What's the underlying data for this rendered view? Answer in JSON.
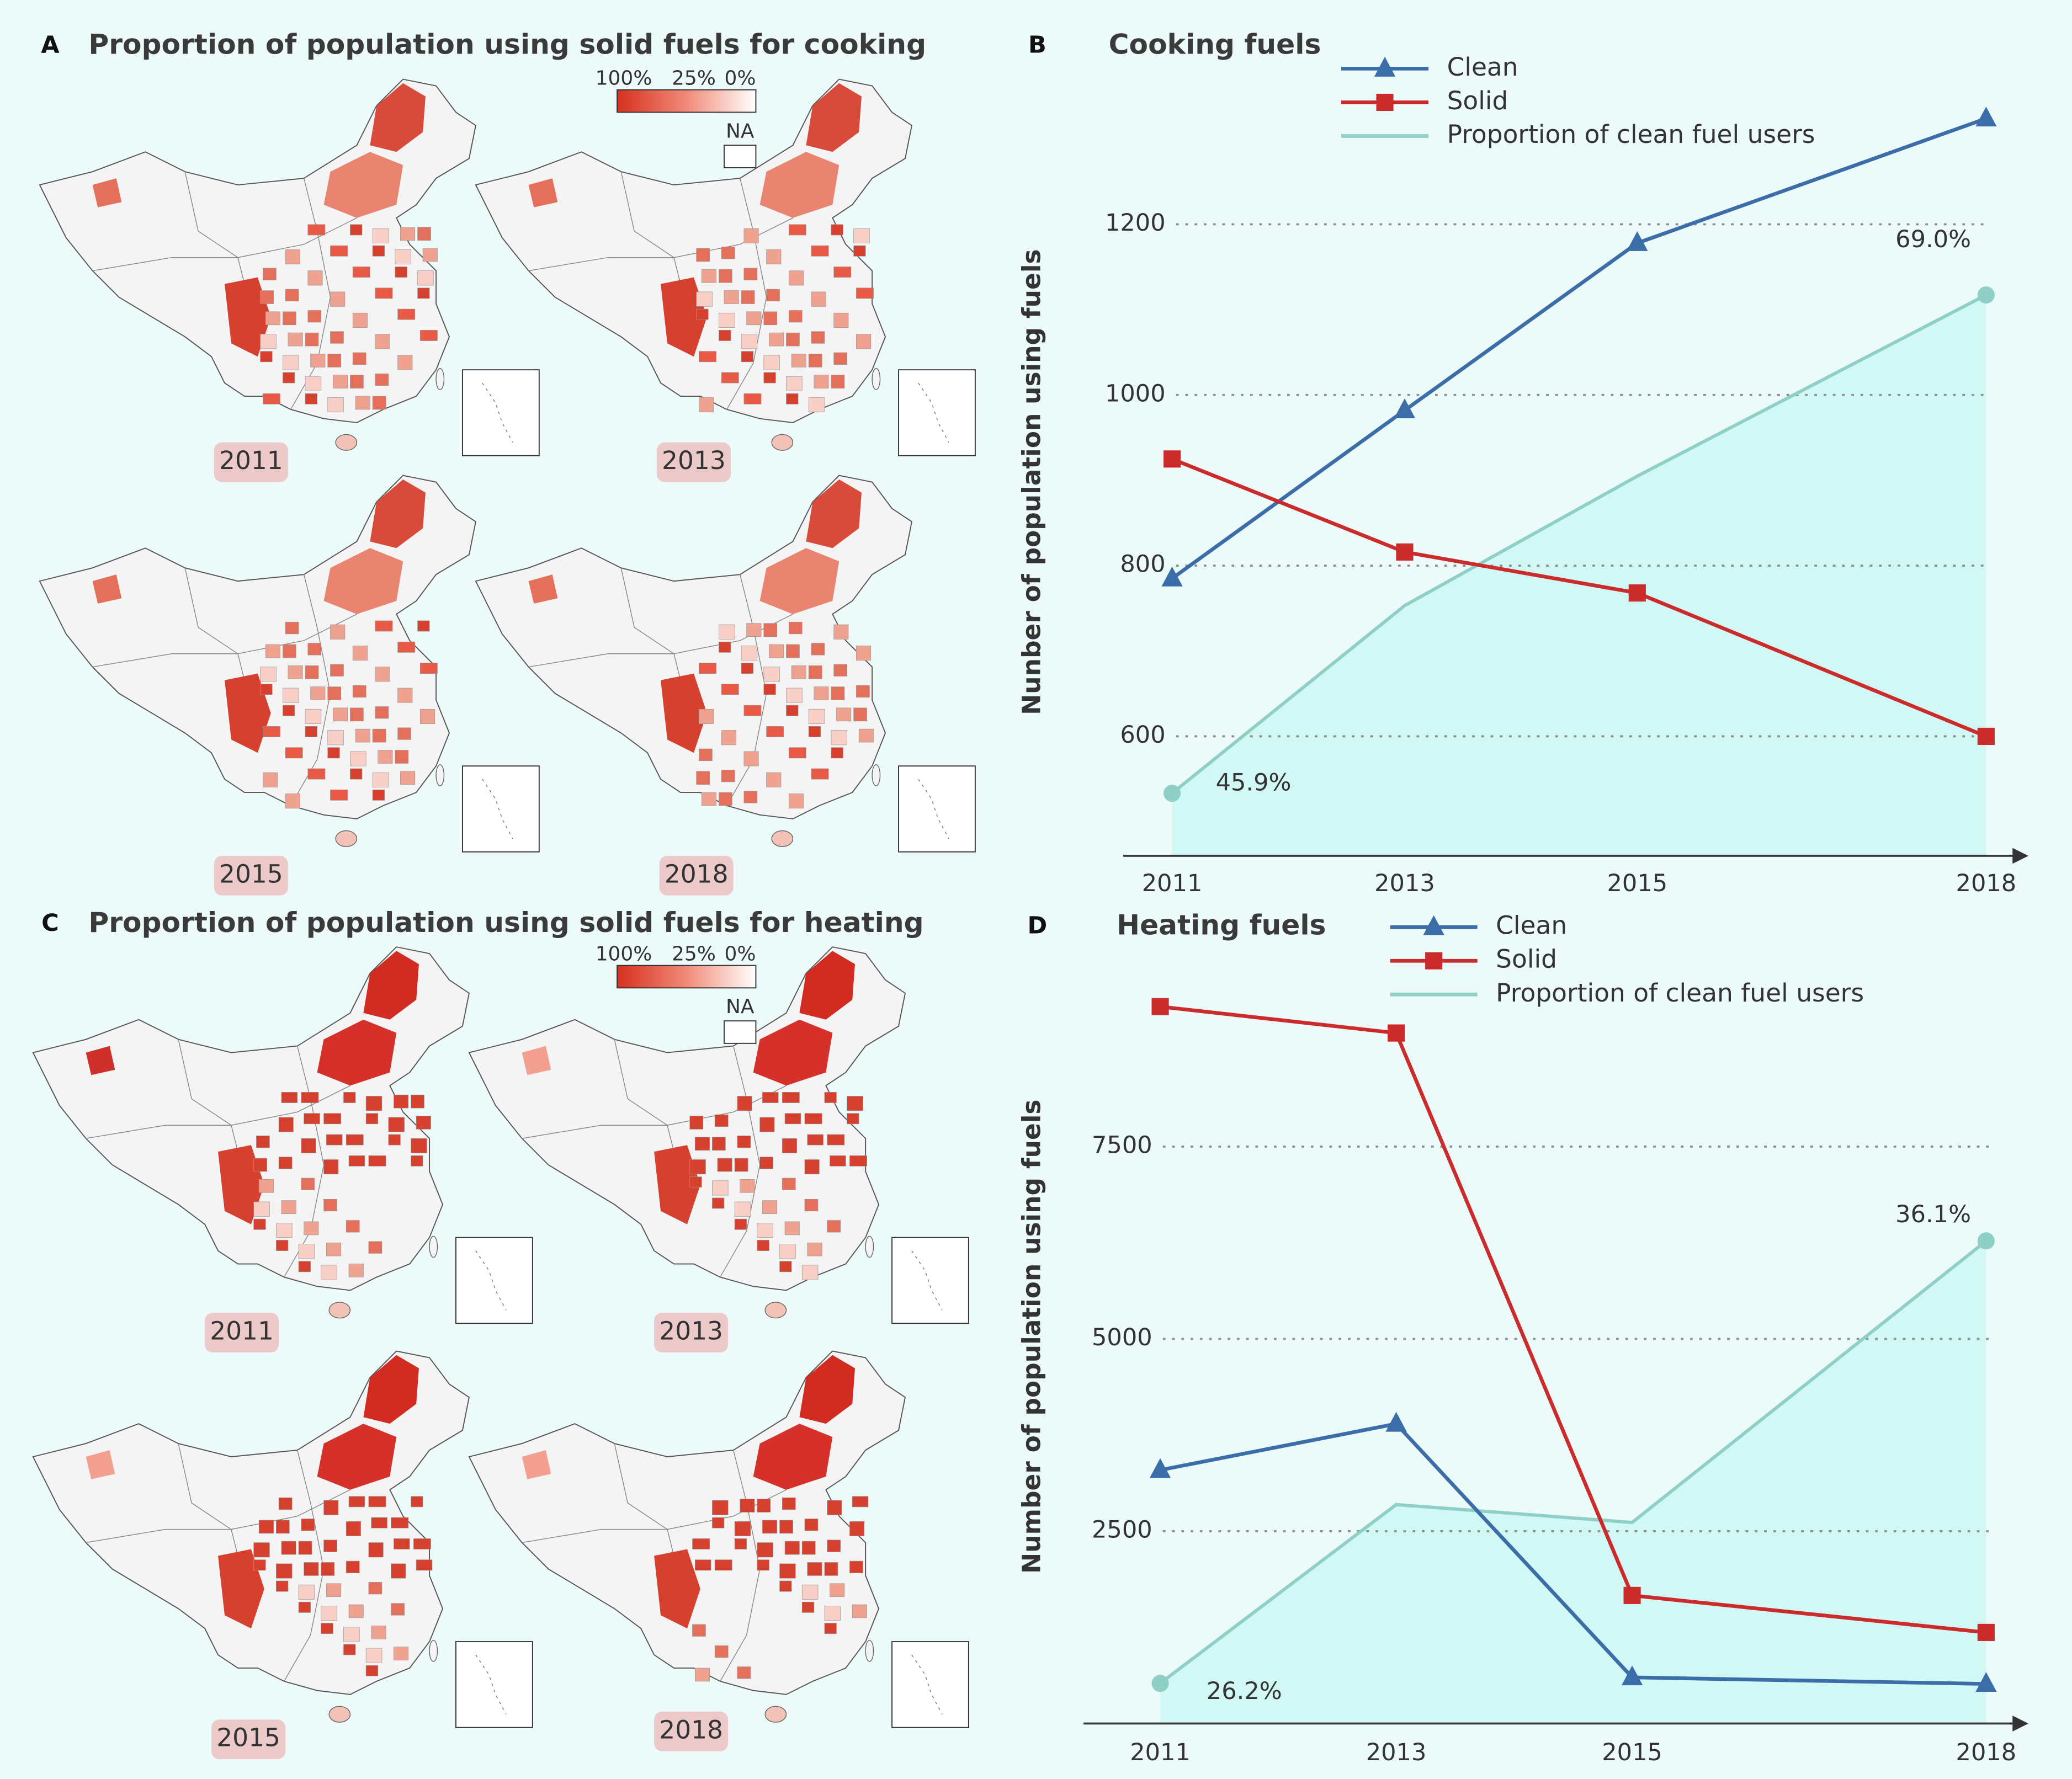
{
  "map_panels": [
    {
      "label": "A",
      "title": "Proportion of population using solid fuels for cooking",
      "legend": [
        "100%",
        "25%",
        "0%"
      ],
      "na": "NA",
      "years": [
        "2011",
        "2013",
        "2015",
        "2018"
      ]
    },
    {
      "label": "C",
      "title": "Proportion of population using solid fuels for heating",
      "legend": [
        "100%",
        "25%",
        "0%"
      ],
      "na": "NA",
      "years": [
        "2011",
        "2013",
        "2015",
        "2018"
      ]
    }
  ],
  "chart_data": [
    {
      "type": "line",
      "panel_label": "B",
      "title": "Cooking fuels",
      "y_label": "Nunber of population using fuels",
      "x": [
        2011,
        2013,
        2015,
        2018
      ],
      "xlim": [
        2011,
        2018
      ],
      "xticks": [
        2011,
        2013,
        2015,
        2018
      ],
      "ylim": [
        460,
        1370
      ],
      "yticks": [
        600,
        800,
        1000,
        1200
      ],
      "y2lim": [
        43,
        79
      ],
      "grid": true,
      "series": [
        {
          "name": "Clean",
          "color": "#3b6ea8",
          "marker": "triangle",
          "values": [
            785,
            982,
            1178,
            1324
          ]
        },
        {
          "name": "Solid",
          "color": "#cc2b2b",
          "marker": "square",
          "values": [
            925,
            816,
            768,
            600
          ]
        },
        {
          "name": "Proportion of clean fuel users",
          "color": "#8fd0c6",
          "area_color": "#d2f8f5",
          "marker": "circle",
          "axis": "y2",
          "values": [
            45.9,
            54.6,
            60.6,
            69.0
          ],
          "value_labels": [
            "45.9%",
            null,
            null,
            "69.0%"
          ]
        }
      ]
    },
    {
      "type": "line",
      "panel_label": "D",
      "title": "Heating fuels",
      "y_label": "Number of population using fuels",
      "x": [
        2011,
        2013,
        2015,
        2018
      ],
      "xlim": [
        2011,
        2018
      ],
      "xticks": [
        2011,
        2013,
        2015,
        2018
      ],
      "ylim": [
        0,
        9700
      ],
      "yticks": [
        2500,
        5000,
        7500
      ],
      "y2lim": [
        25.3,
        42
      ],
      "grid": true,
      "series": [
        {
          "name": "Clean",
          "color": "#3b6ea8",
          "marker": "triangle",
          "values": [
            3295,
            3896,
            600,
            515
          ]
        },
        {
          "name": "Solid",
          "color": "#cc2b2b",
          "marker": "square",
          "values": [
            9319,
            8976,
            1665,
            1184
          ]
        },
        {
          "name": "Proportion of clean fuel users",
          "color": "#8fd0c6",
          "area_color": "#d2f8f5",
          "marker": "circle",
          "axis": "y2",
          "values": [
            26.2,
            30.2,
            29.8,
            36.1
          ],
          "value_labels": [
            "26.2%",
            null,
            null,
            "36.1%"
          ]
        }
      ]
    }
  ]
}
